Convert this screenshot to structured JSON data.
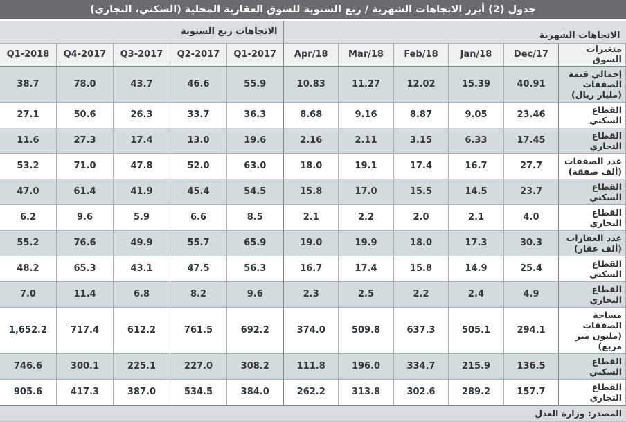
{
  "title": "جدول (2) أبرز الاتجاهات الشهرية / ربع السنوية للسوق العقارية المحلية (السكني، التجاري)",
  "groups": {
    "monthly": "الاتجاهات الشهرية",
    "quarterly": "الاتجاهات ربع السنوية"
  },
  "columns": [
    "متغيرات السوق",
    "Dec/17",
    "Jan/18",
    "Feb/18",
    "Mar/18",
    "Apr/18",
    "2017-Q1",
    "2017-Q2",
    "2017-Q3",
    "2017-Q4",
    "2018-Q1"
  ],
  "rows": [
    {
      "label": "إجمالي قيمة الصفقات (مليار ريال)",
      "values": [
        "40.91",
        "15.39",
        "12.02",
        "11.27",
        "10.83",
        "55.9",
        "46.6",
        "43.7",
        "78.0",
        "38.7"
      ]
    },
    {
      "label": "القطاع السكني",
      "values": [
        "23.46",
        "9.05",
        "8.87",
        "9.16",
        "8.68",
        "36.3",
        "33.7",
        "26.3",
        "50.6",
        "27.1"
      ]
    },
    {
      "label": "القطاع التجاري",
      "values": [
        "17.45",
        "6.33",
        "3.15",
        "2.11",
        "2.16",
        "19.6",
        "13.0",
        "17.4",
        "27.3",
        "11.6"
      ]
    },
    {
      "label": "عدد الصفقات (ألف صفقة)",
      "values": [
        "27.7",
        "16.7",
        "17.4",
        "19.1",
        "18.0",
        "63.0",
        "52.0",
        "47.8",
        "71.0",
        "53.2"
      ]
    },
    {
      "label": "القطاع السكني",
      "values": [
        "23.7",
        "14.5",
        "15.5",
        "17.0",
        "15.8",
        "54.5",
        "45.4",
        "41.9",
        "61.4",
        "47.0"
      ]
    },
    {
      "label": "القطاع التجاري",
      "values": [
        "4.0",
        "2.1",
        "2.0",
        "2.2",
        "2.1",
        "8.5",
        "6.6",
        "5.9",
        "9.6",
        "6.2"
      ]
    },
    {
      "label": "عدد العقارات (ألف عقار)",
      "values": [
        "30.3",
        "17.3",
        "18.0",
        "19.9",
        "19.0",
        "65.9",
        "55.7",
        "49.9",
        "76.6",
        "55.2"
      ]
    },
    {
      "label": "القطاع السكني",
      "values": [
        "25.4",
        "14.9",
        "15.8",
        "17.4",
        "16.7",
        "56.3",
        "47.5",
        "43.1",
        "65.3",
        "48.2"
      ]
    },
    {
      "label": "القطاع التجاري",
      "values": [
        "4.9",
        "2.4",
        "2.2",
        "2.5",
        "2.3",
        "9.6",
        "8.2",
        "6.8",
        "11.4",
        "7.0"
      ]
    },
    {
      "label": "مساحة الصفقات (مليون متر مربع)",
      "values": [
        "294.1",
        "505.1",
        "637.3",
        "509.8",
        "374.0",
        "692.2",
        "761.5",
        "612.2",
        "717.4",
        "1,652.2"
      ]
    },
    {
      "label": "القطاع السكني",
      "values": [
        "136.5",
        "215.9",
        "334.7",
        "196.0",
        "111.8",
        "308.2",
        "227.0",
        "225.1",
        "300.1",
        "746.6"
      ]
    },
    {
      "label": "القطاع التجاري",
      "values": [
        "157.7",
        "289.2",
        "302.6",
        "313.8",
        "262.2",
        "384.0",
        "534.5",
        "387.0",
        "417.3",
        "905.6"
      ]
    }
  ],
  "source": "المصدر: وزارة العدل",
  "colors": {
    "title_bar": "#696b6e",
    "group_header": "#dcdfe1",
    "column_header": "#eff1f1",
    "stripe": "#d4dbde",
    "footer": "#dadbdc",
    "border_dark": "#83878a"
  }
}
